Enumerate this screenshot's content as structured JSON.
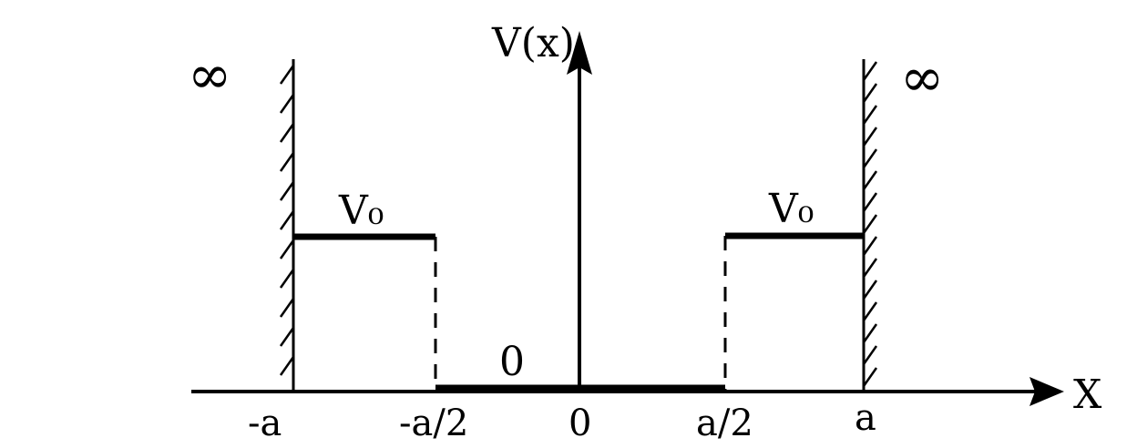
{
  "diagram": {
    "axis_y_label": "V(x)",
    "axis_x_label": "X",
    "infinity_left": "∞",
    "infinity_right": "∞",
    "barrier_left_label": "V₀",
    "barrier_right_label": "V₀",
    "well_bottom_label": "0",
    "ticks": [
      "-a",
      "-a/2",
      "0",
      "a/2",
      "a"
    ]
  }
}
